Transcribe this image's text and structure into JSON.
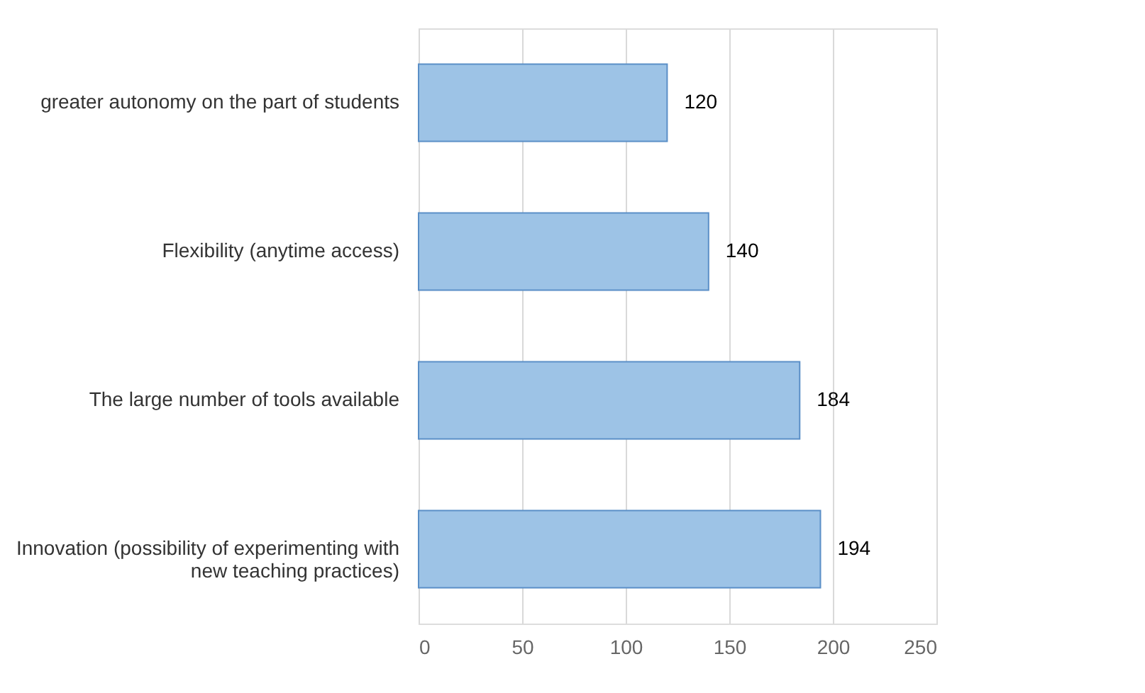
{
  "chart_data": {
    "type": "bar",
    "orientation": "horizontal",
    "categories": [
      "greater autonomy on the part of students",
      "Flexibility (anytime access)",
      "The large number of tools available",
      "Innovation (possibility of experimenting with\nnew teaching practices)"
    ],
    "values": [
      120,
      140,
      184,
      194
    ],
    "color": "#9dc3e6",
    "xlim": [
      0,
      250
    ],
    "xticks": [
      0,
      50,
      100,
      150,
      200,
      250
    ],
    "grid": "x",
    "data_labels": true
  }
}
